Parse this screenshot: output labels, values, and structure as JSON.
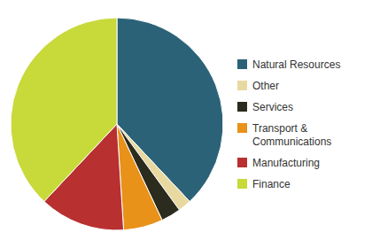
{
  "chart_data": {
    "type": "pie",
    "categories": [
      "Natural Resources",
      "Other",
      "Services",
      "Transport &\nCommunications",
      "Manufacturing",
      "Finance"
    ],
    "values": [
      38,
      2,
      3,
      6,
      13,
      38
    ],
    "colors": [
      "#2b6278",
      "#e8d9a0",
      "#2c2c1e",
      "#e8921a",
      "#b83030",
      "#c8d93a"
    ],
    "legend": "right"
  }
}
